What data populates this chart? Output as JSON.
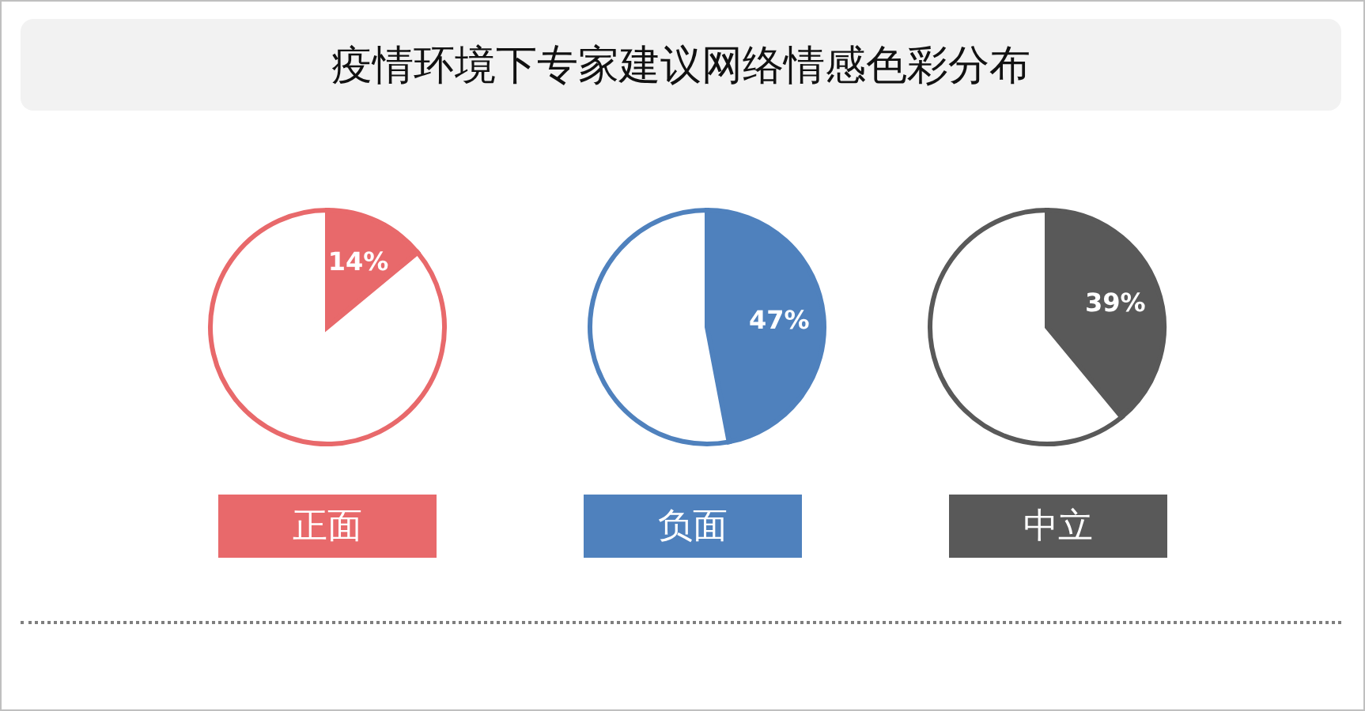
{
  "chart_data": [
    {
      "type": "pie",
      "title": "疫情环境下专家建议网络情感色彩分布",
      "xlabel": "正面",
      "categories": [
        null,
        null
      ],
      "values": [
        14,
        86
      ],
      "colors": [
        "#e8696b",
        "#ffffff"
      ],
      "value_labels": [
        "14%",
        null
      ]
    },
    {
      "type": "pie",
      "xlabel": "负面",
      "categories": [
        null,
        null
      ],
      "values": [
        47,
        53
      ],
      "colors": [
        "#4f81bd",
        "#ffffff"
      ],
      "value_labels": [
        "47%",
        null
      ]
    },
    {
      "type": "pie",
      "xlabel": "中立",
      "categories": [
        null,
        null
      ],
      "values": [
        39,
        61
      ],
      "colors": [
        "#595959",
        "#ffffff"
      ],
      "value_labels": [
        "39%",
        null
      ]
    }
  ]
}
